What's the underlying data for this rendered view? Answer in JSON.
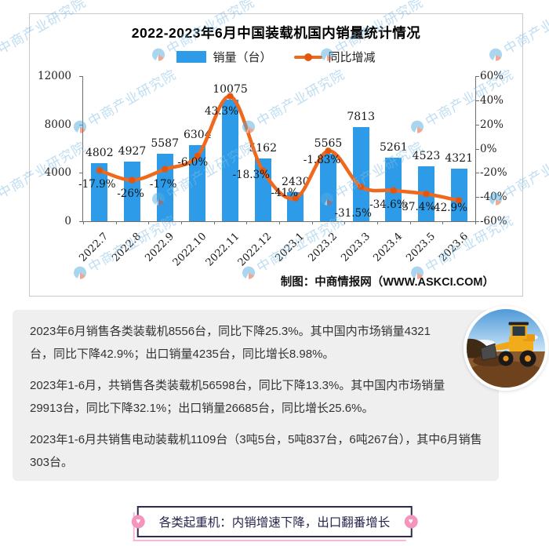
{
  "chart": {
    "title": "2022-2023年6月中国装载机国内销量统计情况",
    "legend": [
      {
        "label": "销量（台）",
        "type": "bar",
        "color": "#2d9be8"
      },
      {
        "label": "同比增减",
        "type": "line",
        "color": "#f0681c"
      }
    ],
    "source": "制图：中商情报网（WWW.ASKCI.COM）",
    "watermark_text": "中商产业研究院"
  },
  "chart_data": {
    "type": "bar+line",
    "title": "2022-2023年6月中国装载机国内销量统计情况",
    "categories": [
      "2022.7",
      "2022.8",
      "2022.9",
      "2022.10",
      "2022.11",
      "2022.12",
      "2023.1",
      "2023.2",
      "2023.3",
      "2023.4",
      "2023.5",
      "2023.6"
    ],
    "series": [
      {
        "name": "销量（台）",
        "type": "bar",
        "y_axis": "left",
        "color": "#2d9be8",
        "values": [
          4802,
          4927,
          5587,
          6304,
          10075,
          5162,
          2430,
          5565,
          7813,
          5261,
          4523,
          4321
        ]
      },
      {
        "name": "同比增减",
        "type": "line",
        "y_axis": "right",
        "color": "#f0681c",
        "marker_color": "#e4560e",
        "values": [
          -17.9,
          -26,
          -17,
          -6.0,
          43.3,
          -18.3,
          -41,
          -1.83,
          -31.5,
          -34.6,
          -37.4,
          -42.9
        ],
        "point_labels": [
          "-17.9%",
          "-26%",
          "-17%",
          "-6.0%",
          "43.3%",
          "-18.3%",
          "-41%",
          "-1.83%",
          "-31.5%",
          "-34.6%",
          "-37.4%",
          "-42.9%"
        ]
      }
    ],
    "left_axis": {
      "min": 0,
      "max": 12000,
      "ticks": [
        "12000",
        "8000",
        "4000",
        "0"
      ]
    },
    "right_axis": {
      "min": -60,
      "max": 60,
      "ticks": [
        "60%",
        "40%",
        "20%",
        "0%",
        "-20%",
        "-40%",
        "-60%"
      ]
    },
    "grid": false,
    "legend_position": "top"
  },
  "info_panel": {
    "paragraphs": [
      "2023年6月销售各类装载机8556台，同比下降25.3%。其中国内市场销量4321台，同比下降42.9%；出口销量4235台，同比增长8.98%。",
      "2023年1-6月，共销售各类装载机56598台，同比下降13.3%。其中国内市场销量29913台，同比下降32.1%；出口销量26685台，同比增长25.6%。",
      "2023年1-6月共销售电动装载机1109台（3吨5台，5吨837台，6吨267台），其中6月销售303台。"
    ]
  },
  "banner": {
    "text": "各类起重机：内销增速下降，出口翻番增长"
  },
  "photo": {
    "description": "yellow wheel loader working on dirt"
  }
}
